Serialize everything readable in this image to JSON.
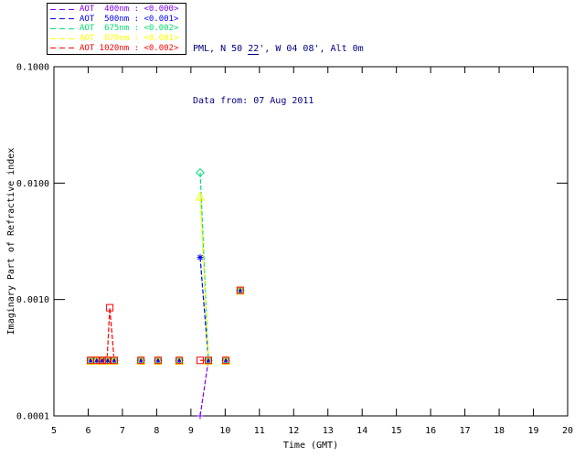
{
  "header": {
    "location_prefix": "PML, N 50 ",
    "location_underlined": "22",
    "location_suffix": "', W 04 08', Alt 0m",
    "data_from": "Data from: 07 Aug 2011"
  },
  "colors": {
    "axis": "#000000",
    "header_text": "#000080",
    "background": "#ffffff"
  },
  "chart_data": {
    "type": "line",
    "title": "PML, N 50 22', W 04 08', Alt 0m",
    "subtitle": "Data from: 07 Aug 2011",
    "xlabel": "Time (GMT)",
    "ylabel": "Imaginary Part of Refractive index",
    "x_range": [
      5,
      20
    ],
    "x_ticks": [
      "5",
      "6",
      "7",
      "8",
      "9",
      "10",
      "11",
      "12",
      "13",
      "14",
      "15",
      "16",
      "17",
      "18",
      "19",
      "20"
    ],
    "y_scale": "log",
    "y_range": [
      0.0001,
      0.1
    ],
    "y_ticks": [
      {
        "value": 0.1,
        "label": "0.1000"
      },
      {
        "value": 0.01,
        "label": "0.0100"
      },
      {
        "value": 0.001,
        "label": "0.0010"
      },
      {
        "value": 0.0001,
        "label": "0.0001"
      }
    ],
    "grid": false,
    "legend_position": "outside-top-left",
    "series": [
      {
        "name": "AOT 400nm",
        "legend_label": "AOT  400nm : <0.000>",
        "aot_value": "<0.000>",
        "color": "#7F00FF",
        "marker": "plus",
        "points": [
          [
            6.07,
            0.0003
          ],
          [
            6.25,
            0.0003
          ],
          [
            6.41,
            0.0003
          ],
          [
            6.57,
            0.0003
          ],
          [
            6.76,
            0.0003
          ],
          [
            7.54,
            0.0003
          ],
          [
            8.04,
            0.0003
          ],
          [
            8.66,
            0.0003
          ],
          [
            9.27,
            0.0001
          ],
          [
            9.51,
            0.0003
          ],
          [
            10.02,
            0.0003
          ],
          [
            10.44,
            0.0012
          ]
        ],
        "segments": [
          [
            0,
            1,
            2,
            3,
            4
          ],
          [
            8,
            9
          ]
        ]
      },
      {
        "name": "AOT 500nm",
        "legend_label": "AOT  500nm : <0.001>",
        "aot_value": "<0.001>",
        "color": "#0000FF",
        "marker": "asterisk",
        "points": [
          [
            6.07,
            0.0003
          ],
          [
            6.25,
            0.0003
          ],
          [
            6.41,
            0.0003
          ],
          [
            6.57,
            0.0003
          ],
          [
            6.76,
            0.0003
          ],
          [
            7.54,
            0.0003
          ],
          [
            8.04,
            0.0003
          ],
          [
            8.66,
            0.0003
          ],
          [
            9.27,
            0.0023
          ],
          [
            9.51,
            0.0003
          ],
          [
            10.02,
            0.0003
          ],
          [
            10.44,
            0.0012
          ]
        ],
        "segments": [
          [
            0,
            1,
            2,
            3,
            4
          ],
          [
            8,
            9
          ]
        ]
      },
      {
        "name": "AOT 675nm",
        "legend_label": "AOT  675nm : <0.002>",
        "aot_value": "<0.002>",
        "color": "#00E070",
        "marker": "diamond",
        "points": [
          [
            6.07,
            0.0003
          ],
          [
            6.25,
            0.0003
          ],
          [
            6.41,
            0.0003
          ],
          [
            6.57,
            0.0003
          ],
          [
            6.76,
            0.0003
          ],
          [
            7.54,
            0.0003
          ],
          [
            8.04,
            0.0003
          ],
          [
            8.66,
            0.0003
          ],
          [
            9.27,
            0.0123
          ],
          [
            9.51,
            0.0003
          ],
          [
            10.02,
            0.0003
          ],
          [
            10.44,
            0.0012
          ]
        ],
        "segments": [
          [
            0,
            1,
            2,
            3,
            4
          ],
          [
            8,
            9
          ]
        ]
      },
      {
        "name": "AOT 870nm",
        "legend_label": "AOT  870nm : <0.001>",
        "aot_value": "<0.001>",
        "color": "#FFFF00",
        "marker": "triangle",
        "points": [
          [
            6.07,
            0.0003
          ],
          [
            6.25,
            0.0003
          ],
          [
            6.41,
            0.0003
          ],
          [
            6.57,
            0.0003
          ],
          [
            6.76,
            0.0003
          ],
          [
            7.54,
            0.0003
          ],
          [
            8.04,
            0.0003
          ],
          [
            8.66,
            0.0003
          ],
          [
            9.27,
            0.0077
          ],
          [
            9.51,
            0.0003
          ],
          [
            10.02,
            0.0003
          ],
          [
            10.44,
            0.0012
          ]
        ],
        "segments": [
          [
            0,
            1,
            2,
            3,
            4
          ],
          [
            8,
            9
          ]
        ]
      },
      {
        "name": "AOT 1020nm",
        "legend_label": "AOT 1020nm : <0.002>",
        "aot_value": "<0.002>",
        "color": "#FF0000",
        "marker": "square",
        "points": [
          [
            6.07,
            0.0003
          ],
          [
            6.25,
            0.0003
          ],
          [
            6.41,
            0.0003
          ],
          [
            6.55,
            0.0003
          ],
          [
            6.63,
            0.00085
          ],
          [
            6.76,
            0.0003
          ],
          [
            7.54,
            0.0003
          ],
          [
            8.04,
            0.0003
          ],
          [
            8.66,
            0.0003
          ],
          [
            9.27,
            0.0003
          ],
          [
            9.51,
            0.0003
          ],
          [
            10.02,
            0.0003
          ],
          [
            10.44,
            0.0012
          ]
        ],
        "segments": [
          [
            0,
            1,
            2,
            3,
            4,
            5
          ],
          [
            9,
            10
          ]
        ]
      }
    ]
  }
}
